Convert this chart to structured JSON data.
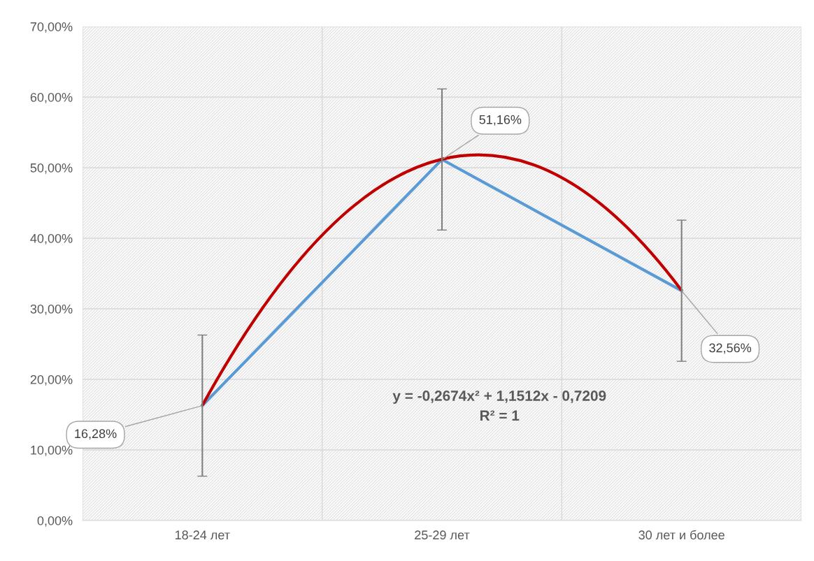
{
  "chart_data": {
    "type": "line",
    "categories": [
      "18-24 лет",
      "25-29 лет",
      "30 лет и более"
    ],
    "ylim": [
      0,
      70
    ],
    "yticks": [
      {
        "value": 0,
        "label": "0,00%"
      },
      {
        "value": 10,
        "label": "10,00%"
      },
      {
        "value": 20,
        "label": "20,00%"
      },
      {
        "value": 30,
        "label": "30,00%"
      },
      {
        "value": 40,
        "label": "40,00%"
      },
      {
        "value": 50,
        "label": "50,00%"
      },
      {
        "value": 60,
        "label": "60,00%"
      },
      {
        "value": 70,
        "label": "70,00%"
      }
    ],
    "grid": "y",
    "marker": "none",
    "line_style": "solid",
    "series": [
      {
        "color": "#5b9bd5",
        "values": [
          16.28,
          51.16,
          32.56
        ],
        "errors": [
          10,
          10,
          10
        ],
        "value_labels": [
          "16,28%",
          "51,16%",
          "32,56%"
        ]
      },
      {
        "type": "line",
        "color": "#c00000",
        "values": [
          16.3,
          51.2,
          32.6
        ]
      }
    ],
    "annotations": [
      "y = -0,2674x² + 1,1512x - 0,7209",
      "R² = 1"
    ]
  }
}
